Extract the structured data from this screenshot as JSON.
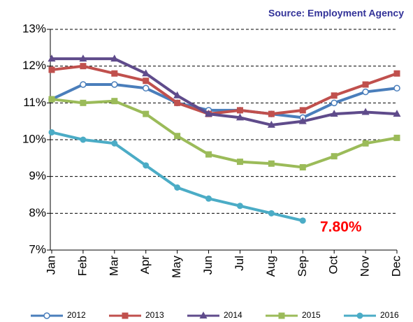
{
  "chart_data": {
    "type": "line",
    "source": "Source: Employment Agency",
    "annotation": "7.80%",
    "categories": [
      "Jan",
      "Feb",
      "Mar",
      "Apr",
      "May",
      "Jun",
      "Jul",
      "Aug",
      "Sep",
      "Oct",
      "Nov",
      "Dec"
    ],
    "series": [
      {
        "name": "2012",
        "color": "#4a7ebb",
        "marker": "circle-open",
        "values": [
          11.1,
          11.5,
          11.5,
          11.4,
          11.0,
          10.8,
          10.8,
          10.7,
          10.6,
          11.0,
          11.3,
          11.4
        ]
      },
      {
        "name": "2013",
        "color": "#c0504d",
        "marker": "square",
        "values": [
          11.9,
          12.0,
          11.8,
          11.6,
          11.0,
          10.7,
          10.8,
          10.7,
          10.8,
          11.2,
          11.5,
          11.8
        ]
      },
      {
        "name": "2014",
        "color": "#5f4b8b",
        "marker": "triangle",
        "values": [
          12.2,
          12.2,
          12.2,
          11.8,
          11.2,
          10.7,
          10.6,
          10.4,
          10.5,
          10.7,
          10.75,
          10.7
        ]
      },
      {
        "name": "2015",
        "color": "#9bbb59",
        "marker": "square",
        "values": [
          11.1,
          11.0,
          11.05,
          10.7,
          10.1,
          9.6,
          9.4,
          9.35,
          9.25,
          9.55,
          9.9,
          10.05
        ]
      },
      {
        "name": "2016",
        "color": "#4bacc6",
        "marker": "circle",
        "values": [
          10.2,
          10.0,
          9.9,
          9.3,
          8.7,
          8.4,
          8.2,
          8.0,
          7.8,
          null,
          null,
          null
        ]
      }
    ],
    "ylim": [
      7,
      13
    ],
    "yticks": [
      {
        "value": 7,
        "label": "7%"
      },
      {
        "value": 8,
        "label": "8%"
      },
      {
        "value": 9,
        "label": "9%"
      },
      {
        "value": 10,
        "label": "10%"
      },
      {
        "value": 11,
        "label": "11%"
      },
      {
        "value": 12,
        "label": "12%"
      },
      {
        "value": 13,
        "label": "13%"
      }
    ],
    "grid": true,
    "legend": "bottom"
  }
}
